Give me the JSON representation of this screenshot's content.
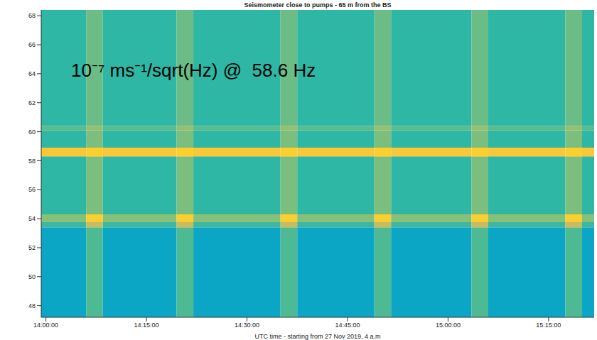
{
  "chart_data": {
    "type": "heatmap",
    "title": "Seismometer close to pumps - 65 m from the BS",
    "x_label": "UTC time - starting from 27 Nov 2019, 4 a.m",
    "annotation": "10⁻⁷ ms⁻¹/sqrt(Hz) @  58.6 Hz",
    "xlim": [
      839.3,
      921.8
    ],
    "xticks": [
      {
        "value": 840,
        "label": "14:00:00"
      },
      {
        "value": 855,
        "label": "14:15:00"
      },
      {
        "value": 870,
        "label": "14:30:00"
      },
      {
        "value": 885,
        "label": "14:45:00"
      },
      {
        "value": 900,
        "label": "15:00:00"
      },
      {
        "value": 915,
        "label": "15:15:00"
      }
    ],
    "ylim": [
      47.2,
      68.4
    ],
    "yticks": [
      48,
      50,
      52,
      54,
      56,
      58,
      60,
      62,
      64,
      66,
      68
    ],
    "grid": false,
    "x_bins": [
      839.3,
      846,
      848.5,
      859.5,
      862,
      875,
      877.5,
      889,
      891.5,
      903.5,
      906,
      917.5,
      920,
      921.8
    ],
    "y_bins": [
      47.2,
      53.4,
      53.8,
      54.3,
      58.3,
      58.9,
      60.1,
      60.4,
      68.4
    ],
    "cells_log10": [
      [
        -8.1,
        -7.75,
        -8.1,
        -7.75,
        -8.1,
        -7.75,
        -8.1,
        -7.75,
        -8.1,
        -7.75,
        -8.1,
        -7.75,
        -8.1
      ],
      [
        -7.8,
        -7.3,
        -7.8,
        -7.3,
        -7.8,
        -7.3,
        -7.8,
        -7.3,
        -7.8,
        -7.3,
        -7.8,
        -7.3,
        -7.8
      ],
      [
        -7.55,
        -6.95,
        -7.55,
        -6.95,
        -7.55,
        -6.95,
        -7.55,
        -6.95,
        -7.55,
        -6.95,
        -7.55,
        -6.95,
        -7.55
      ],
      [
        -7.85,
        -7.6,
        -7.85,
        -7.6,
        -7.85,
        -7.6,
        -7.85,
        -7.6,
        -7.85,
        -7.6,
        -7.85,
        -7.6,
        -7.85
      ],
      [
        -7.0,
        -6.95,
        -7.0,
        -6.95,
        -7.0,
        -6.95,
        -7.0,
        -6.95,
        -7.0,
        -6.95,
        -7.0,
        -6.95,
        -7.0
      ],
      [
        -7.85,
        -7.6,
        -7.85,
        -7.6,
        -7.85,
        -7.6,
        -7.85,
        -7.6,
        -7.85,
        -7.6,
        -7.85,
        -7.6,
        -7.85
      ],
      [
        -7.7,
        -7.5,
        -7.7,
        -7.5,
        -7.7,
        -7.5,
        -7.7,
        -7.5,
        -7.7,
        -7.5,
        -7.7,
        -7.5,
        -7.7
      ],
      [
        -7.85,
        -7.65,
        -7.85,
        -7.65,
        -7.85,
        -7.65,
        -7.85,
        -7.65,
        -7.85,
        -7.65,
        -7.85,
        -7.65,
        -7.85
      ]
    ],
    "clim": [
      -9,
      -6.7
    ]
  }
}
